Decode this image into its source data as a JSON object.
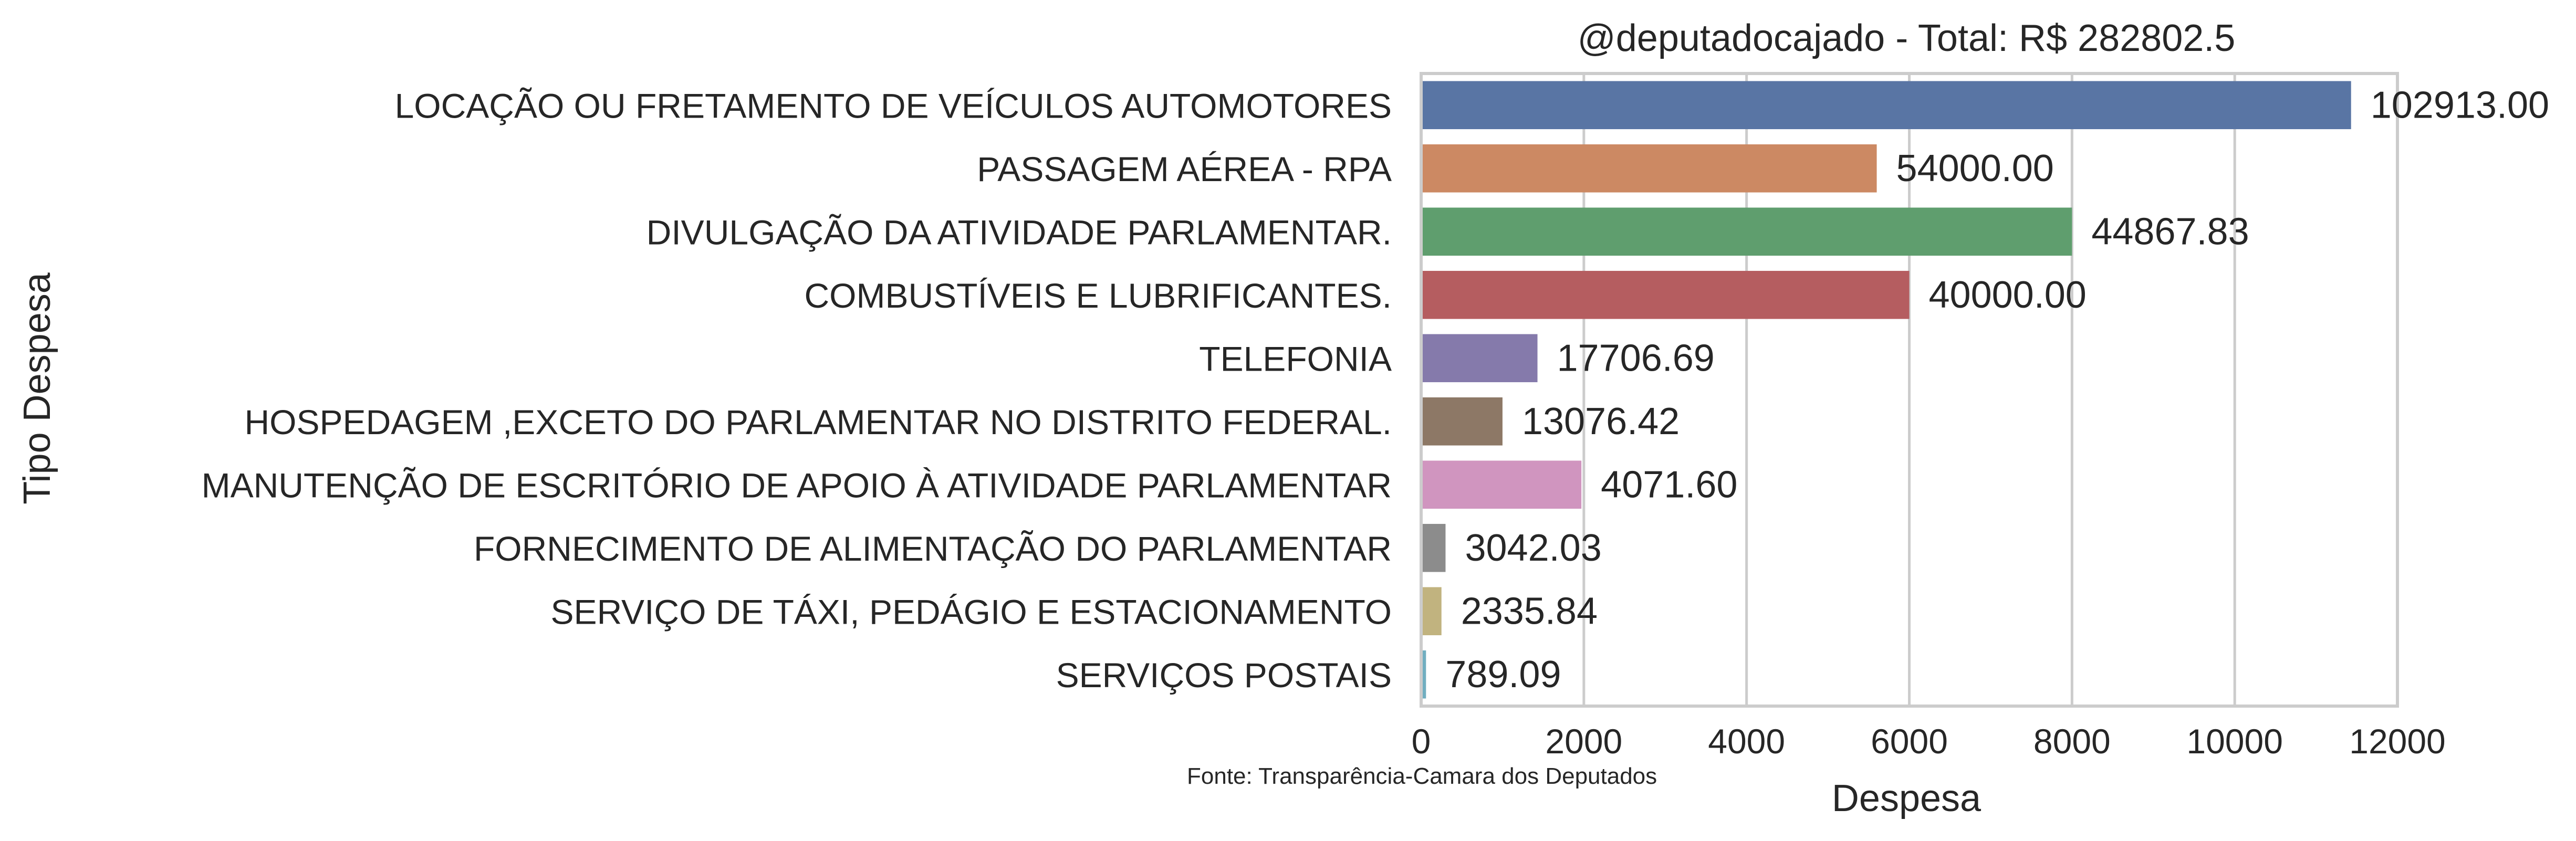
{
  "chart_data": {
    "type": "bar",
    "orientation": "horizontal",
    "title": "@deputadocajado - Total: R$ 282802.5",
    "xlabel": "Despesa",
    "ylabel": "Tipo Despesa",
    "source_note": "Fonte: Transparência-Camara dos Deputados",
    "xlim": [
      0,
      12000
    ],
    "xticks": [
      "0",
      "2000",
      "4000",
      "6000",
      "8000",
      "10000",
      "12000"
    ],
    "grid": "vertical",
    "categories": [
      "LOCAÇÃO OU FRETAMENTO DE VEÍCULOS AUTOMOTORES",
      "PASSAGEM AÉREA - RPA",
      "DIVULGAÇÃO DA ATIVIDADE PARLAMENTAR.",
      "COMBUSTÍVEIS E LUBRIFICANTES.",
      "TELEFONIA",
      "HOSPEDAGEM ,EXCETO DO PARLAMENTAR NO DISTRITO FEDERAL.",
      "MANUTENÇÃO DE ESCRITÓRIO DE APOIO À ATIVIDADE PARLAMENTAR",
      "FORNECIMENTO DE ALIMENTAÇÃO DO PARLAMENTAR",
      "SERVIÇO DE TÁXI, PEDÁGIO E ESTACIONAMENTO",
      "SERVIÇOS POSTAIS"
    ],
    "values": [
      11430,
      5600,
      8000,
      6000,
      1430,
      1000,
      1970,
      300,
      250,
      60
    ],
    "data_labels": [
      "102913.00",
      "54000.00",
      "44867.83",
      "40000.00",
      "17706.69",
      "13076.42",
      "4071.60",
      "3042.03",
      "2335.84",
      "789.09"
    ],
    "colors": [
      "#5975a4",
      "#cc8963",
      "#5f9e6e",
      "#b55d60",
      "#857aab",
      "#8d7866",
      "#d095bf",
      "#8c8c8c",
      "#c1b37f",
      "#71aec0"
    ]
  }
}
